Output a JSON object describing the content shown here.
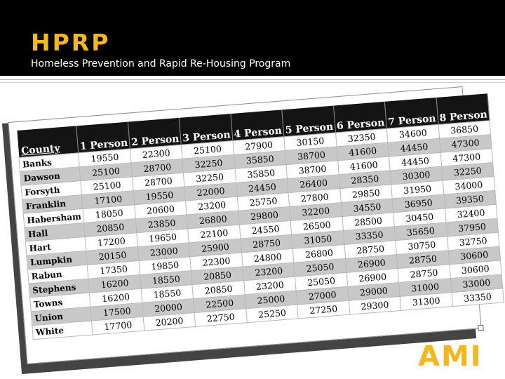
{
  "slide": {
    "title": "HPRP",
    "subtitle": "Homeless Prevention and Rapid Re-Housing Program",
    "badge": "AMI"
  },
  "colors": {
    "accent": "#f4b71e",
    "header_bg": "#000000",
    "row_alt": "#c8c8c8"
  },
  "table": {
    "headers": [
      "County",
      "1 Person",
      "2 Person",
      "3 Person",
      "4 Person",
      "5 Person",
      "6 Person",
      "7 Person",
      "8 Person"
    ],
    "rows": [
      [
        "Banks",
        "19550",
        "22300",
        "25100",
        "27900",
        "30150",
        "32350",
        "34600",
        "36850"
      ],
      [
        "Dawson",
        "25100",
        "28700",
        "32250",
        "35850",
        "38700",
        "41600",
        "44450",
        "47300"
      ],
      [
        "Forsyth",
        "25100",
        "28700",
        "32250",
        "35850",
        "38700",
        "41600",
        "44450",
        "47300"
      ],
      [
        "Franklin",
        "17100",
        "19550",
        "22000",
        "24450",
        "26400",
        "28350",
        "30300",
        "32250"
      ],
      [
        "Habersham",
        "18050",
        "20600",
        "23200",
        "25750",
        "27800",
        "29850",
        "31950",
        "34000"
      ],
      [
        "Hall",
        "20850",
        "23850",
        "26800",
        "29800",
        "32200",
        "34550",
        "36950",
        "39350"
      ],
      [
        "Hart",
        "17200",
        "19650",
        "22100",
        "24550",
        "26500",
        "28500",
        "30450",
        "32400"
      ],
      [
        "Lumpkin",
        "20150",
        "23000",
        "25900",
        "28750",
        "31050",
        "33350",
        "35650",
        "37950"
      ],
      [
        "Rabun",
        "17350",
        "19850",
        "22300",
        "24800",
        "26800",
        "28750",
        "30750",
        "32750"
      ],
      [
        "Stephens",
        "16200",
        "18550",
        "20850",
        "23200",
        "25050",
        "26900",
        "28750",
        "30600"
      ],
      [
        "Towns",
        "16200",
        "18550",
        "20850",
        "23200",
        "25050",
        "26900",
        "28750",
        "30600"
      ],
      [
        "Union",
        "17500",
        "20000",
        "22500",
        "25000",
        "27000",
        "29000",
        "31000",
        "33000"
      ],
      [
        "White",
        "17700",
        "20200",
        "22750",
        "25250",
        "27250",
        "29300",
        "31300",
        "33350"
      ]
    ]
  }
}
